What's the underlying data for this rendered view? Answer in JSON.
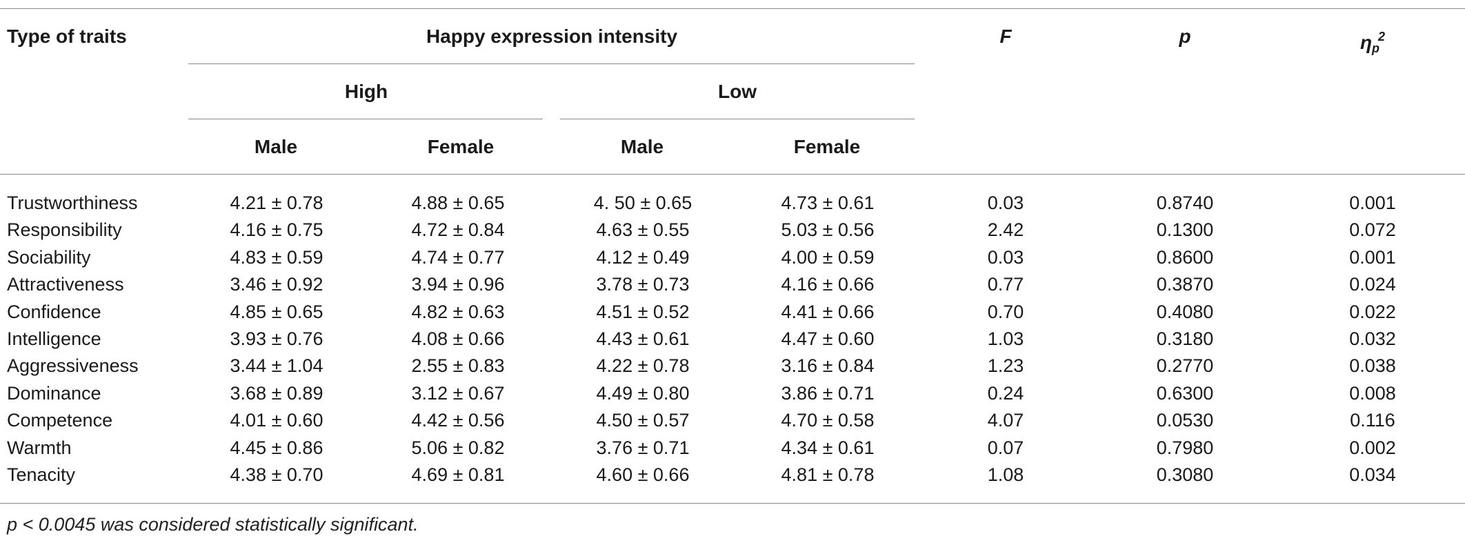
{
  "table": {
    "headers": {
      "type_of_traits": "Type of traits",
      "happy_intensity": "Happy expression intensity",
      "high": "High",
      "low": "Low",
      "male": "Male",
      "female": "Female",
      "f": "F",
      "p": "p",
      "eta": "η",
      "eta_sub": "p",
      "eta_sup": "2"
    },
    "rows": [
      {
        "trait": "Trustworthiness",
        "high_male": "4.21 ± 0.78",
        "high_female": "4.88 ± 0.65",
        "low_male": "4. 50 ± 0.65",
        "low_female": "4.73 ± 0.61",
        "f": "0.03",
        "p": "0.8740",
        "eta": "0.001"
      },
      {
        "trait": "Responsibility",
        "high_male": "4.16 ± 0.75",
        "high_female": "4.72 ± 0.84",
        "low_male": "4.63 ± 0.55",
        "low_female": "5.03 ± 0.56",
        "f": "2.42",
        "p": "0.1300",
        "eta": "0.072"
      },
      {
        "trait": "Sociability",
        "high_male": "4.83 ± 0.59",
        "high_female": "4.74 ± 0.77",
        "low_male": "4.12 ± 0.49",
        "low_female": "4.00 ± 0.59",
        "f": "0.03",
        "p": "0.8600",
        "eta": "0.001"
      },
      {
        "trait": "Attractiveness",
        "high_male": "3.46 ± 0.92",
        "high_female": "3.94 ± 0.96",
        "low_male": "3.78 ± 0.73",
        "low_female": "4.16 ± 0.66",
        "f": "0.77",
        "p": "0.3870",
        "eta": "0.024"
      },
      {
        "trait": "Confidence",
        "high_male": "4.85 ± 0.65",
        "high_female": "4.82 ± 0.63",
        "low_male": "4.51 ± 0.52",
        "low_female": "4.41 ± 0.66",
        "f": "0.70",
        "p": "0.4080",
        "eta": "0.022"
      },
      {
        "trait": "Intelligence",
        "high_male": "3.93 ± 0.76",
        "high_female": "4.08 ± 0.66",
        "low_male": "4.43 ± 0.61",
        "low_female": "4.47 ± 0.60",
        "f": "1.03",
        "p": "0.3180",
        "eta": "0.032"
      },
      {
        "trait": "Aggressiveness",
        "high_male": "3.44 ± 1.04",
        "high_female": "2.55 ± 0.83",
        "low_male": "4.22 ± 0.78",
        "low_female": "3.16 ± 0.84",
        "f": "1.23",
        "p": "0.2770",
        "eta": "0.038"
      },
      {
        "trait": "Dominance",
        "high_male": "3.68 ± 0.89",
        "high_female": "3.12 ± 0.67",
        "low_male": "4.49 ± 0.80",
        "low_female": "3.86 ± 0.71",
        "f": "0.24",
        "p": "0.6300",
        "eta": "0.008"
      },
      {
        "trait": "Competence",
        "high_male": "4.01 ± 0.60",
        "high_female": "4.42 ± 0.56",
        "low_male": "4.50 ± 0.57",
        "low_female": "4.70 ± 0.58",
        "f": "4.07",
        "p": "0.0530",
        "eta": "0.116"
      },
      {
        "trait": "Warmth",
        "high_male": "4.45 ± 0.86",
        "high_female": "5.06 ± 0.82",
        "low_male": "3.76 ± 0.71",
        "low_female": "4.34 ± 0.61",
        "f": "0.07",
        "p": "0.7980",
        "eta": "0.002"
      },
      {
        "trait": "Tenacity",
        "high_male": "4.38 ± 0.70",
        "high_female": "4.69 ± 0.81",
        "low_male": "4.60 ± 0.66",
        "low_female": "4.81 ± 0.78",
        "f": "1.08",
        "p": "0.3080",
        "eta": "0.034"
      }
    ],
    "footnote": "p < 0.0045 was considered statistically significant."
  }
}
